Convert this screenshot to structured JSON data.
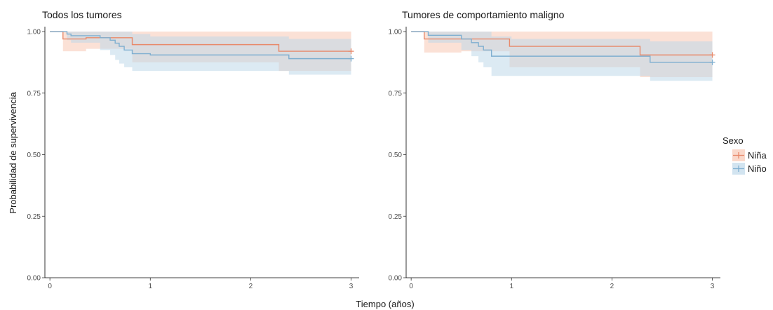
{
  "figure": {
    "ylabel": "Probabilidad de supervivencia",
    "xlabel": "Tiempo (años)",
    "legend": {
      "title": "Sexo",
      "placement": "right",
      "items": [
        {
          "label": "Niña",
          "color": "#E8896A",
          "fill": "#F8C8B4"
        },
        {
          "label": "Niño",
          "color": "#7FAFD0",
          "fill": "#BFD8E9"
        }
      ]
    }
  },
  "chart_data": [
    {
      "type": "line",
      "subtype": "kaplan-meier",
      "title": "Todos los tumores",
      "xlabel": "Tiempo (años)",
      "ylabel": "Probabilidad de supervivencia",
      "xlim": [
        -0.05,
        3.08
      ],
      "ylim": [
        0,
        1.02
      ],
      "xticks": [
        0,
        1,
        2,
        3
      ],
      "yticks": [
        0.0,
        0.25,
        0.5,
        0.75,
        1.0
      ],
      "ytick_labels": [
        "0.00",
        "0.25",
        "0.50",
        "0.75",
        "1.00"
      ],
      "grid": false,
      "series": [
        {
          "name": "Niña",
          "color": "#E8896A",
          "fill": "#F8C8B4",
          "steps": [
            [
              0,
              1.0
            ],
            [
              0.13,
              0.97
            ],
            [
              0.36,
              0.975
            ],
            [
              0.82,
              0.947
            ],
            [
              2.28,
              0.92
            ],
            [
              3.0,
              0.92
            ]
          ],
          "ci": [
            [
              0,
              1.0,
              1.0
            ],
            [
              0.13,
              0.92,
              1.0
            ],
            [
              0.36,
              0.93,
              1.0
            ],
            [
              0.82,
              0.875,
              1.0
            ],
            [
              2.28,
              0.84,
              1.0
            ],
            [
              3.0,
              0.84,
              1.0
            ]
          ]
        },
        {
          "name": "Niño",
          "color": "#7FAFD0",
          "fill": "#BFD8E9",
          "steps": [
            [
              0,
              1.0
            ],
            [
              0.17,
              0.99
            ],
            [
              0.21,
              0.983
            ],
            [
              0.5,
              0.975
            ],
            [
              0.6,
              0.965
            ],
            [
              0.65,
              0.953
            ],
            [
              0.69,
              0.94
            ],
            [
              0.74,
              0.925
            ],
            [
              0.82,
              0.91
            ],
            [
              1.0,
              0.905
            ],
            [
              2.38,
              0.89
            ],
            [
              3.0,
              0.89
            ]
          ],
          "ci": [
            [
              0,
              1.0,
              1.0
            ],
            [
              0.17,
              0.965,
              1.0
            ],
            [
              0.21,
              0.955,
              1.0
            ],
            [
              0.5,
              0.925,
              1.0
            ],
            [
              0.6,
              0.905,
              1.0
            ],
            [
              0.65,
              0.885,
              1.0
            ],
            [
              0.69,
              0.87,
              1.0
            ],
            [
              0.74,
              0.855,
              1.0
            ],
            [
              0.82,
              0.84,
              0.99
            ],
            [
              1.0,
              0.84,
              0.98
            ],
            [
              2.38,
              0.825,
              0.97
            ],
            [
              3.0,
              0.825,
              0.97
            ]
          ]
        }
      ]
    },
    {
      "type": "line",
      "subtype": "kaplan-meier",
      "title": "Tumores de comportamiento maligno",
      "xlabel": "Tiempo (años)",
      "ylabel": "Probabilidad de supervivencia",
      "xlim": [
        -0.05,
        3.08
      ],
      "ylim": [
        0,
        1.02
      ],
      "xticks": [
        0,
        1,
        2,
        3
      ],
      "yticks": [
        0.0,
        0.25,
        0.5,
        0.75,
        1.0
      ],
      "ytick_labels": [
        "0.00",
        "0.25",
        "0.50",
        "0.75",
        "1.00"
      ],
      "grid": false,
      "series": [
        {
          "name": "Niña",
          "color": "#E8896A",
          "fill": "#F8C8B4",
          "steps": [
            [
              0,
              1.0
            ],
            [
              0.13,
              0.97
            ],
            [
              0.5,
              0.97
            ],
            [
              0.98,
              0.94
            ],
            [
              2.28,
              0.905
            ],
            [
              3.0,
              0.905
            ]
          ],
          "ci": [
            [
              0,
              1.0,
              1.0
            ],
            [
              0.13,
              0.915,
              1.0
            ],
            [
              0.5,
              0.92,
              1.0
            ],
            [
              0.98,
              0.855,
              1.0
            ],
            [
              2.28,
              0.815,
              1.0
            ],
            [
              3.0,
              0.815,
              1.0
            ]
          ]
        },
        {
          "name": "Niño",
          "color": "#7FAFD0",
          "fill": "#BFD8E9",
          "steps": [
            [
              0,
              1.0
            ],
            [
              0.17,
              0.985
            ],
            [
              0.5,
              0.97
            ],
            [
              0.6,
              0.955
            ],
            [
              0.67,
              0.94
            ],
            [
              0.72,
              0.925
            ],
            [
              0.8,
              0.9
            ],
            [
              1.0,
              0.9
            ],
            [
              2.38,
              0.875
            ],
            [
              3.0,
              0.875
            ]
          ],
          "ci": [
            [
              0,
              1.0,
              1.0
            ],
            [
              0.17,
              0.955,
              1.0
            ],
            [
              0.5,
              0.925,
              1.0
            ],
            [
              0.6,
              0.9,
              1.0
            ],
            [
              0.67,
              0.875,
              1.0
            ],
            [
              0.72,
              0.855,
              1.0
            ],
            [
              0.8,
              0.82,
              0.98
            ],
            [
              1.0,
              0.82,
              0.97
            ],
            [
              2.38,
              0.8,
              0.96
            ],
            [
              3.0,
              0.8,
              0.96
            ]
          ]
        }
      ]
    }
  ]
}
